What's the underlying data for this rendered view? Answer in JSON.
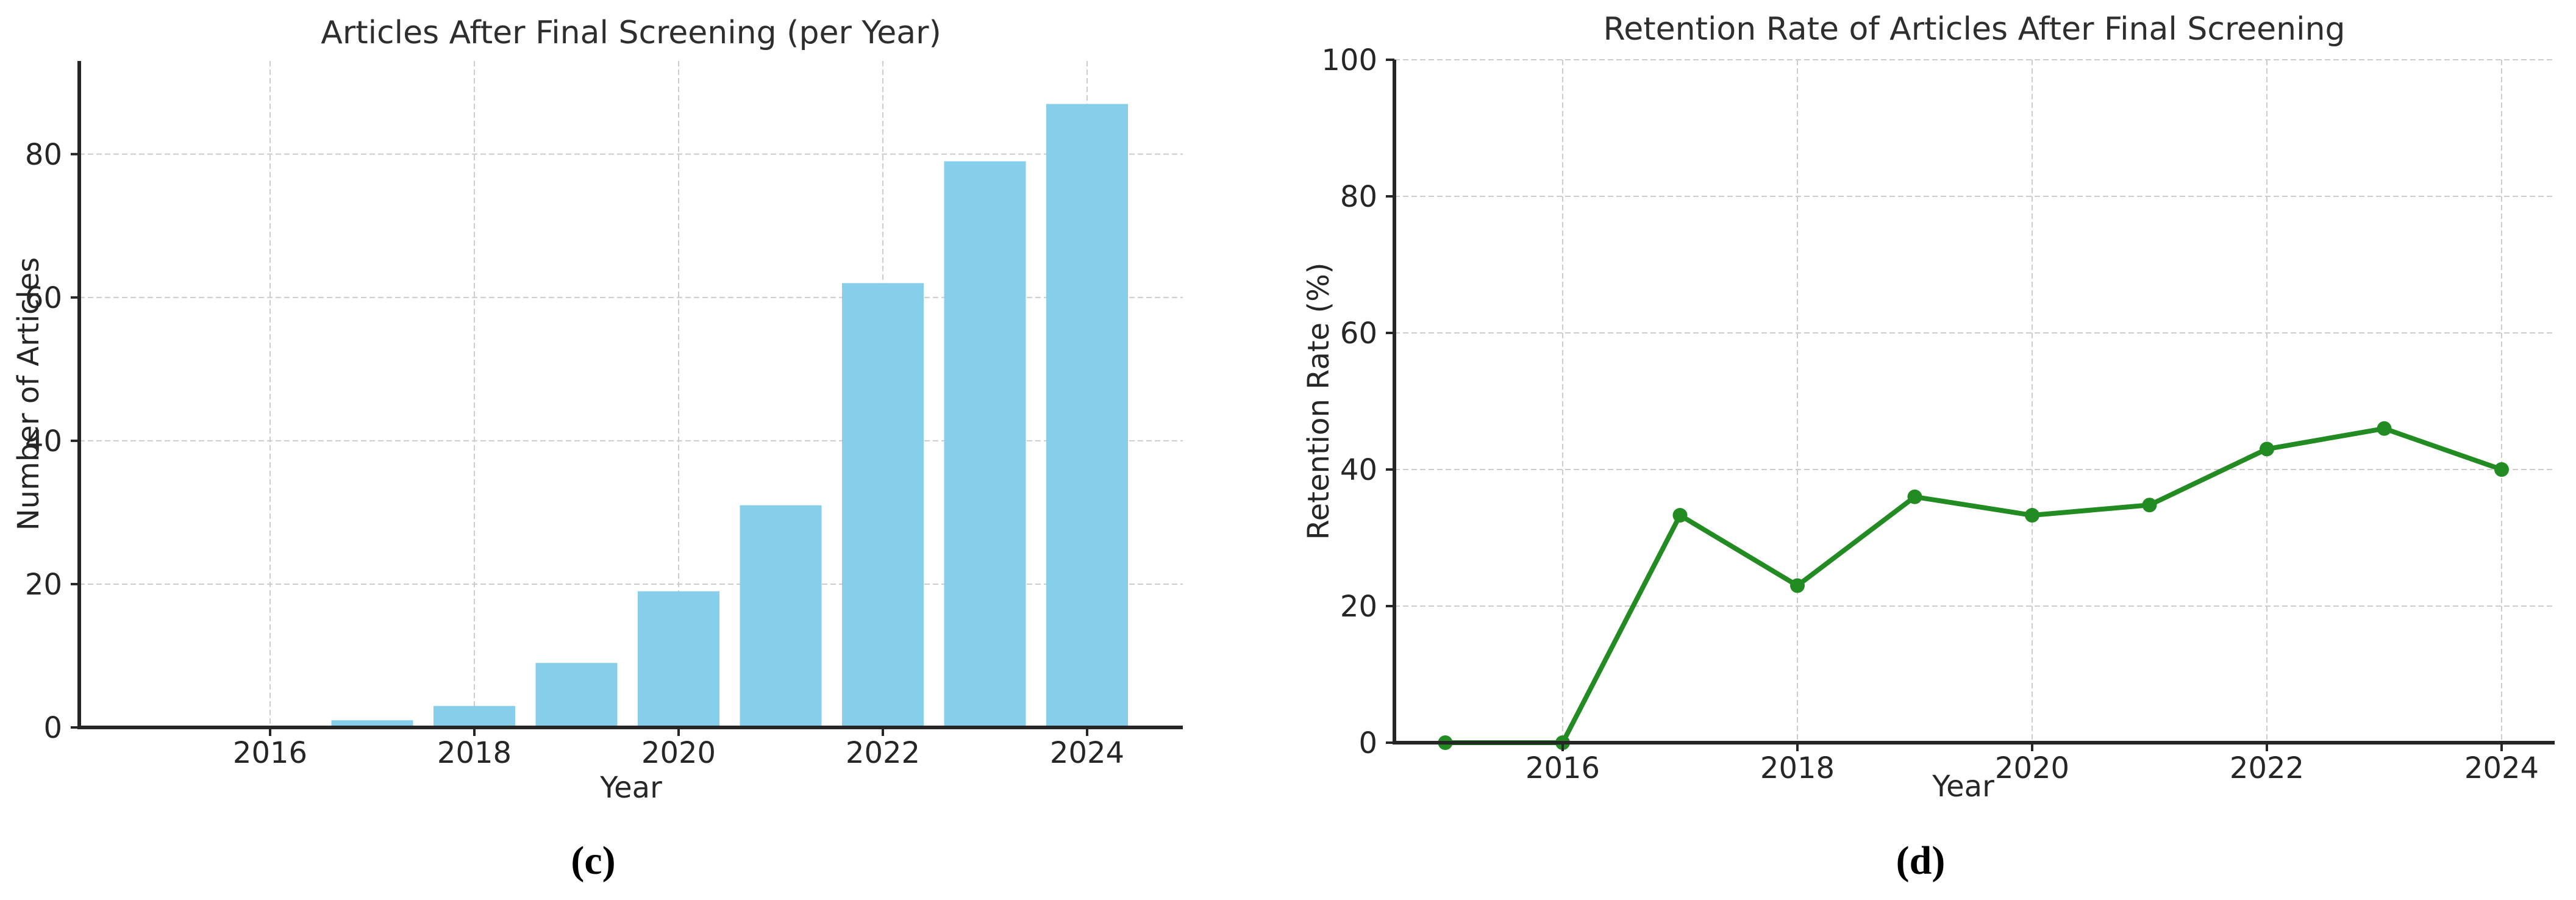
{
  "figure": {
    "background": "#ffffff",
    "text_color": "#262626",
    "grid_color": "#cccccc",
    "spine_color": "#262626"
  },
  "chart_data": [
    {
      "type": "bar",
      "title": "Articles After Final Screening (per Year)",
      "xlabel": "Year",
      "ylabel": "Number of Articles",
      "caption": "(c)",
      "x": [
        2015,
        2016,
        2017,
        2018,
        2019,
        2020,
        2021,
        2022,
        2023,
        2024
      ],
      "values": [
        0,
        0,
        1,
        3,
        9,
        19,
        31,
        62,
        79,
        87
      ],
      "xticks": [
        "2016",
        "2018",
        "2020",
        "2022",
        "2024"
      ],
      "xtick_years": [
        2016,
        2018,
        2020,
        2022,
        2024
      ],
      "yticks": [
        0,
        20,
        40,
        60,
        80
      ],
      "ylim": [
        0,
        93
      ],
      "bar_color": "#87CEEB",
      "grid": true,
      "legend": "none"
    },
    {
      "type": "line",
      "title": "Retention Rate of Articles After Final Screening",
      "xlabel": "Year",
      "ylabel": "Retention Rate (%)",
      "caption": "(d)",
      "x": [
        2015,
        2016,
        2017,
        2018,
        2019,
        2020,
        2021,
        2022,
        2023,
        2024
      ],
      "values": [
        0,
        0,
        33.3,
        23,
        36,
        33.3,
        34.8,
        43,
        46,
        40
      ],
      "xticks": [
        "2016",
        "2018",
        "2020",
        "2022",
        "2024"
      ],
      "xtick_years": [
        2016,
        2018,
        2020,
        2022,
        2024
      ],
      "yticks": [
        0,
        20,
        40,
        60,
        80,
        100
      ],
      "ylim": [
        0,
        100
      ],
      "line_color": "#228B22",
      "marker": "circle",
      "grid": true,
      "legend": "none"
    }
  ]
}
